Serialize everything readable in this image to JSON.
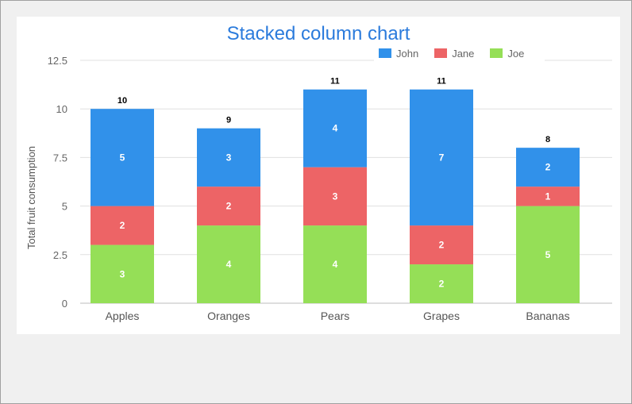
{
  "chart_data": {
    "type": "bar",
    "stacked": true,
    "title": "Stacked column chart",
    "ylabel": "Total fruit consumption",
    "xlabel": "",
    "categories": [
      "Apples",
      "Oranges",
      "Pears",
      "Grapes",
      "Bananas"
    ],
    "ylim": [
      0,
      12.5
    ],
    "yticks": [
      "0",
      "2.5",
      "5",
      "7.5",
      "10",
      "12.5"
    ],
    "grid": true,
    "legend_position": "top-right",
    "series": [
      {
        "name": "Joe",
        "color": "#95df57",
        "values": [
          3,
          4,
          4,
          2,
          5
        ]
      },
      {
        "name": "Jane",
        "color": "#ed6466",
        "values": [
          2,
          2,
          3,
          2,
          1
        ]
      },
      {
        "name": "John",
        "color": "#3191ea",
        "values": [
          5,
          3,
          4,
          7,
          2
        ]
      }
    ],
    "totals": [
      "10",
      "9",
      "11",
      "11",
      "8"
    ],
    "legend_order": [
      "John",
      "Jane",
      "Joe"
    ]
  }
}
